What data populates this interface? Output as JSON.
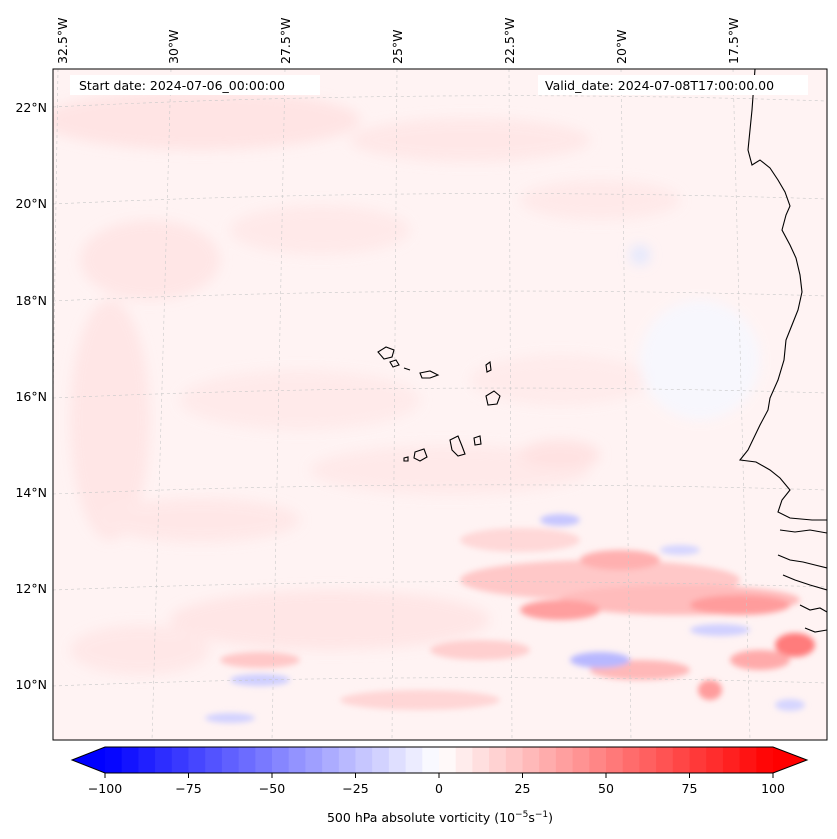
{
  "header": {
    "start_date": "Start date: 2024-07-06_00:00:00",
    "valid_date": "Valid_date: 2024-07-08T17:00:00.00"
  },
  "map": {
    "lon_labels": [
      "32.5°W",
      "30°W",
      "27.5°W",
      "25°W",
      "22.5°W",
      "20°W",
      "17.5°W"
    ],
    "lat_labels": [
      "22°N",
      "20°N",
      "18°N",
      "16°N",
      "14°N",
      "12°N",
      "10°N"
    ],
    "field": "500 hPa absolute vorticity",
    "colors": {
      "neg": "#0000ff",
      "zero": "#ffffff",
      "pos": "#ff0000",
      "coast": "#000000",
      "grid": "#bbbbbb"
    }
  },
  "colorbar": {
    "ticks": [
      "−100",
      "−75",
      "−50",
      "−25",
      "0",
      "25",
      "50",
      "75",
      "100"
    ],
    "label_main": "500 hPa absolute vorticity (10",
    "label_exp1": "−5",
    "label_mid": "s",
    "label_exp2": "−1",
    "label_end": ")"
  }
}
